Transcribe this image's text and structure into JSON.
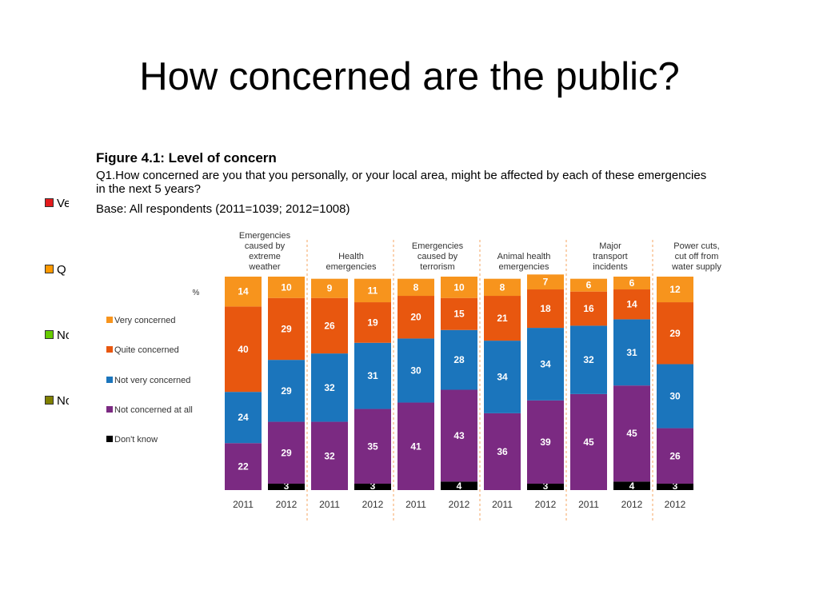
{
  "slide": {
    "title": "How concerned are the public?"
  },
  "background_legend": [
    {
      "label": "Ve",
      "color": "#e31a1c"
    },
    {
      "label": "Q",
      "color": "#ff9900"
    },
    {
      "label": "No",
      "color": "#66cc00"
    },
    {
      "label": "No",
      "color": "#808000"
    }
  ],
  "figure": {
    "title": "Figure 4.1:  Level of concern",
    "question": "Q1.How concerned are you that you personally, or your local area, might be affected by each of these emergencies in the next 5 years?",
    "base": "Base:  All respondents (2011=1039; 2012=1008)",
    "unit_label": "%"
  },
  "chart_data": {
    "type": "bar",
    "stacked": true,
    "groups": [
      {
        "label": "Emergencies caused by extreme weather",
        "bars": [
          {
            "year": "2011",
            "values": {
              "very": 14,
              "quite": 40,
              "not_very": 24,
              "not_at_all": 22,
              "dont_know": null
            }
          },
          {
            "year": "2012",
            "values": {
              "very": 10,
              "quite": 29,
              "not_very": 29,
              "not_at_all": 29,
              "dont_know": 3
            }
          }
        ]
      },
      {
        "label": "Health emergencies",
        "bars": [
          {
            "year": "2011",
            "values": {
              "very": 9,
              "quite": 26,
              "not_very": 32,
              "not_at_all": 32,
              "dont_know": null
            }
          },
          {
            "year": "2012",
            "values": {
              "very": 11,
              "quite": 19,
              "not_very": 31,
              "not_at_all": 35,
              "dont_know": 3
            }
          }
        ]
      },
      {
        "label": "Emergencies caused by terrorism",
        "bars": [
          {
            "year": "2011",
            "values": {
              "very": 8,
              "quite": 20,
              "not_very": 30,
              "not_at_all": 41,
              "dont_know": null
            }
          },
          {
            "year": "2012",
            "values": {
              "very": 10,
              "quite": 15,
              "not_very": 28,
              "not_at_all": 43,
              "dont_know": 4
            }
          }
        ]
      },
      {
        "label": "Animal health emergencies",
        "bars": [
          {
            "year": "2011",
            "values": {
              "very": 8,
              "quite": 21,
              "not_very": 34,
              "not_at_all": 36,
              "dont_know": null
            }
          },
          {
            "year": "2012",
            "values": {
              "very": 7,
              "quite": 18,
              "not_very": 34,
              "not_at_all": 39,
              "dont_know": 3
            }
          }
        ]
      },
      {
        "label": "Major transport incidents",
        "bars": [
          {
            "year": "2011",
            "values": {
              "very": 6,
              "quite": 16,
              "not_very": 32,
              "not_at_all": 45,
              "dont_know": null
            }
          },
          {
            "year": "2012",
            "values": {
              "very": 6,
              "quite": 14,
              "not_very": 31,
              "not_at_all": 45,
              "dont_know": 4
            }
          }
        ]
      },
      {
        "label": "Power cuts, cut off from water supply",
        "bars": [
          {
            "year": "2012",
            "values": {
              "very": 12,
              "quite": 29,
              "not_very": 30,
              "not_at_all": 26,
              "dont_know": 3
            }
          }
        ]
      }
    ],
    "series": [
      {
        "key": "very",
        "name": "Very concerned",
        "color": "#f7941d"
      },
      {
        "key": "quite",
        "name": "Quite concerned",
        "color": "#e8570f"
      },
      {
        "key": "not_very",
        "name": "Not very concerned",
        "color": "#1b75bc"
      },
      {
        "key": "not_at_all",
        "name": "Not concerned at all",
        "color": "#7b2a82"
      },
      {
        "key": "dont_know",
        "name": "Don't know",
        "color": "#000000"
      }
    ],
    "ylim": [
      0,
      100
    ],
    "legend_position": "left",
    "grid": false
  }
}
